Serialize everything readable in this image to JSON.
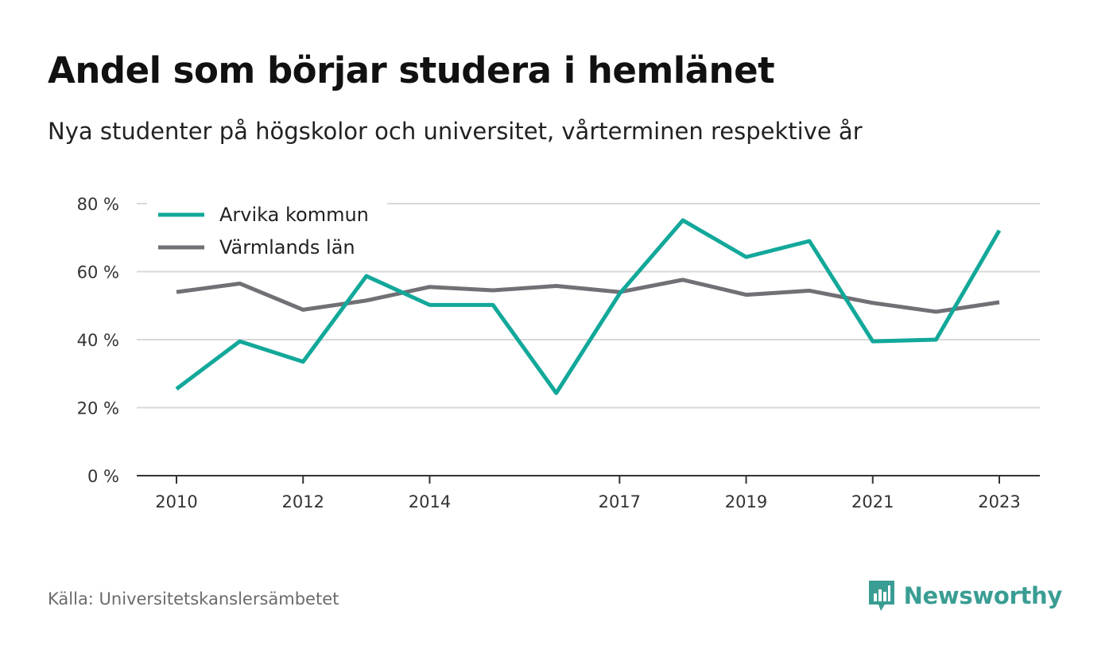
{
  "header": {
    "title": "Andel som börjar studera i hemlänet",
    "subtitle": "Nya studenter på högskolor och universitet, vårterminen respektive år"
  },
  "footer": {
    "source": "Källa: Universitetskanslersämbetet",
    "brand": "Newsworthy",
    "brand_icon": "bar-chart-speech-bubble-icon"
  },
  "colors": {
    "arvika": "#12a89a",
    "varmland": "#707075",
    "grid": "#d8d8d8",
    "axis": "#333333",
    "brand": "#3a9d93"
  },
  "chart_data": {
    "type": "line",
    "title": "Andel som börjar studera i hemlänet",
    "subtitle": "Nya studenter på högskolor och universitet, vårterminen respektive år",
    "xlabel": "",
    "ylabel": "",
    "x": [
      2010,
      2011,
      2012,
      2013,
      2014,
      2015,
      2016,
      2017,
      2018,
      2019,
      2020,
      2021,
      2022,
      2023
    ],
    "x_ticks": [
      "2010",
      "2012",
      "2014",
      "2017",
      "2019",
      "2021",
      "2023"
    ],
    "y_ticks": [
      "0 %",
      "20 %",
      "40 %",
      "60 %",
      "80 %"
    ],
    "ylim": [
      0,
      80
    ],
    "grid": true,
    "legend_position": "top-left",
    "series": [
      {
        "name": "Arvika kommun",
        "color": "#12a89a",
        "values": [
          25.5,
          39.5,
          33.5,
          58.7,
          50.2,
          50.2,
          24.3,
          53.5,
          75.1,
          64.3,
          69.0,
          39.5,
          40.0,
          72.1
        ]
      },
      {
        "name": "Värmlands län",
        "color": "#707075",
        "values": [
          54.0,
          56.5,
          48.8,
          51.5,
          55.5,
          54.5,
          55.8,
          54.0,
          57.6,
          53.2,
          54.4,
          50.8,
          48.2,
          51.0
        ]
      }
    ]
  }
}
